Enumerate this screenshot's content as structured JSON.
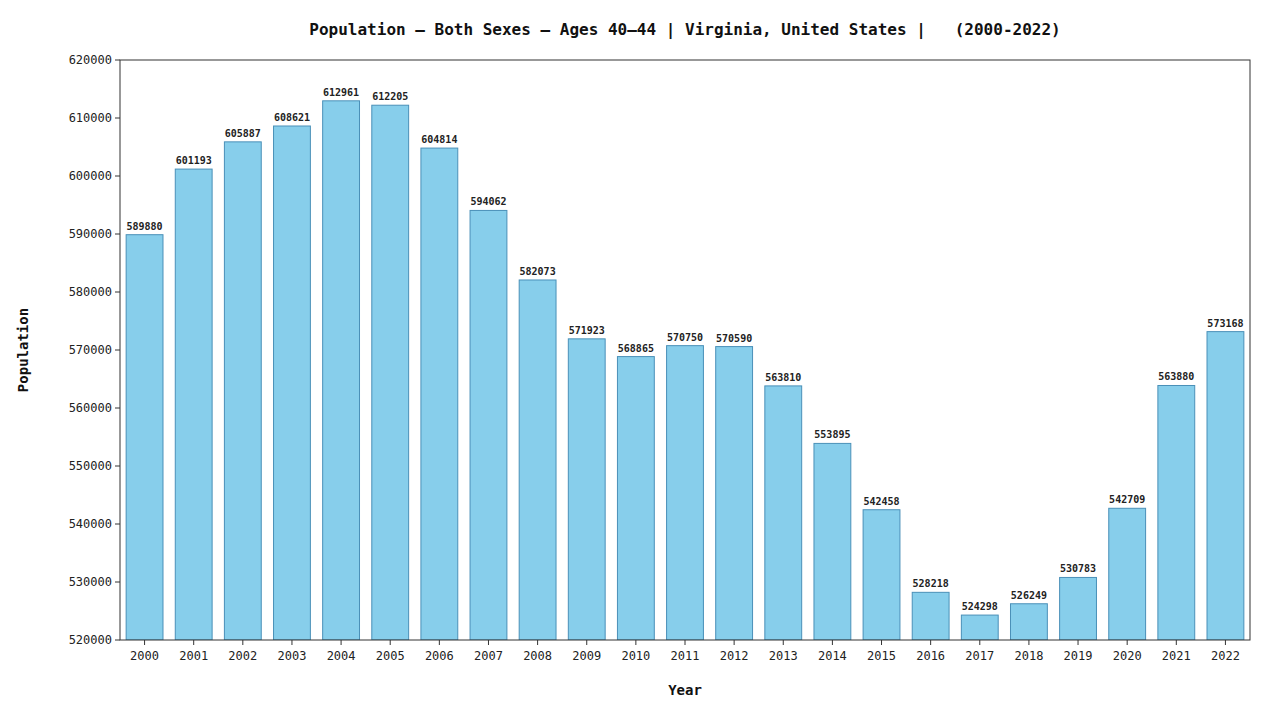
{
  "chart_data": {
    "type": "bar",
    "title": "Population – Both Sexes – Ages 40–44 | Virginia, United States |   (2000-2022)",
    "xlabel": "Year",
    "ylabel": "Population",
    "categories": [
      "2000",
      "2001",
      "2002",
      "2003",
      "2004",
      "2005",
      "2006",
      "2007",
      "2008",
      "2009",
      "2010",
      "2011",
      "2012",
      "2013",
      "2014",
      "2015",
      "2016",
      "2017",
      "2018",
      "2019",
      "2020",
      "2021",
      "2022"
    ],
    "values": [
      589880,
      601193,
      605887,
      608621,
      612961,
      612205,
      604814,
      594062,
      582073,
      571923,
      568865,
      570750,
      570590,
      563810,
      553895,
      542458,
      528218,
      524298,
      526249,
      530783,
      542709,
      563880,
      573168
    ],
    "color": "#87CEEB",
    "ylim": [
      520000,
      620000
    ],
    "yticks": [
      520000,
      530000,
      540000,
      550000,
      560000,
      570000,
      580000,
      590000,
      600000,
      610000,
      620000
    ],
    "grid": false,
    "data_labels": true
  }
}
